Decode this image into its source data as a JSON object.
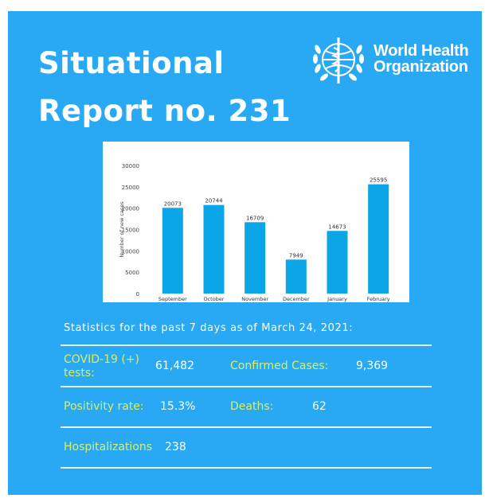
{
  "header": {
    "title_line1": "Situational",
    "title_line2": "Report no. 231"
  },
  "logo": {
    "name_line1": "World Health",
    "name_line2": "Organization",
    "icon": "who-emblem-icon"
  },
  "chart_data": {
    "type": "bar",
    "categories": [
      "September",
      "October",
      "November",
      "December",
      "January",
      "February"
    ],
    "values": [
      20073,
      20744,
      16709,
      7949,
      14673,
      25595
    ],
    "title": "",
    "xlabel": "",
    "ylabel": "Number of new cases",
    "ylim": [
      0,
      30000
    ],
    "yticks": [
      0,
      5000,
      10000,
      15000,
      20000,
      25000,
      30000
    ],
    "bar_color": "#0ba6e8",
    "grid": false,
    "data_labels": true
  },
  "stats": {
    "heading": "Statistics for the past 7 days as of March 24, 2021:",
    "tests_label": "COVID-19 (+) tests:",
    "tests_value": "61,482",
    "confirmed_label": "Confirmed Cases:",
    "confirmed_value": "9,369",
    "positivity_label": "Positivity rate:",
    "positivity_value": "15.3%",
    "deaths_label": "Deaths:",
    "deaths_value": "62",
    "hosp_label": "Hospitalizations",
    "hosp_value": "238"
  },
  "colors": {
    "background": "#29a9f3",
    "label_accent": "#d6ee6a",
    "text": "#ffffff"
  }
}
